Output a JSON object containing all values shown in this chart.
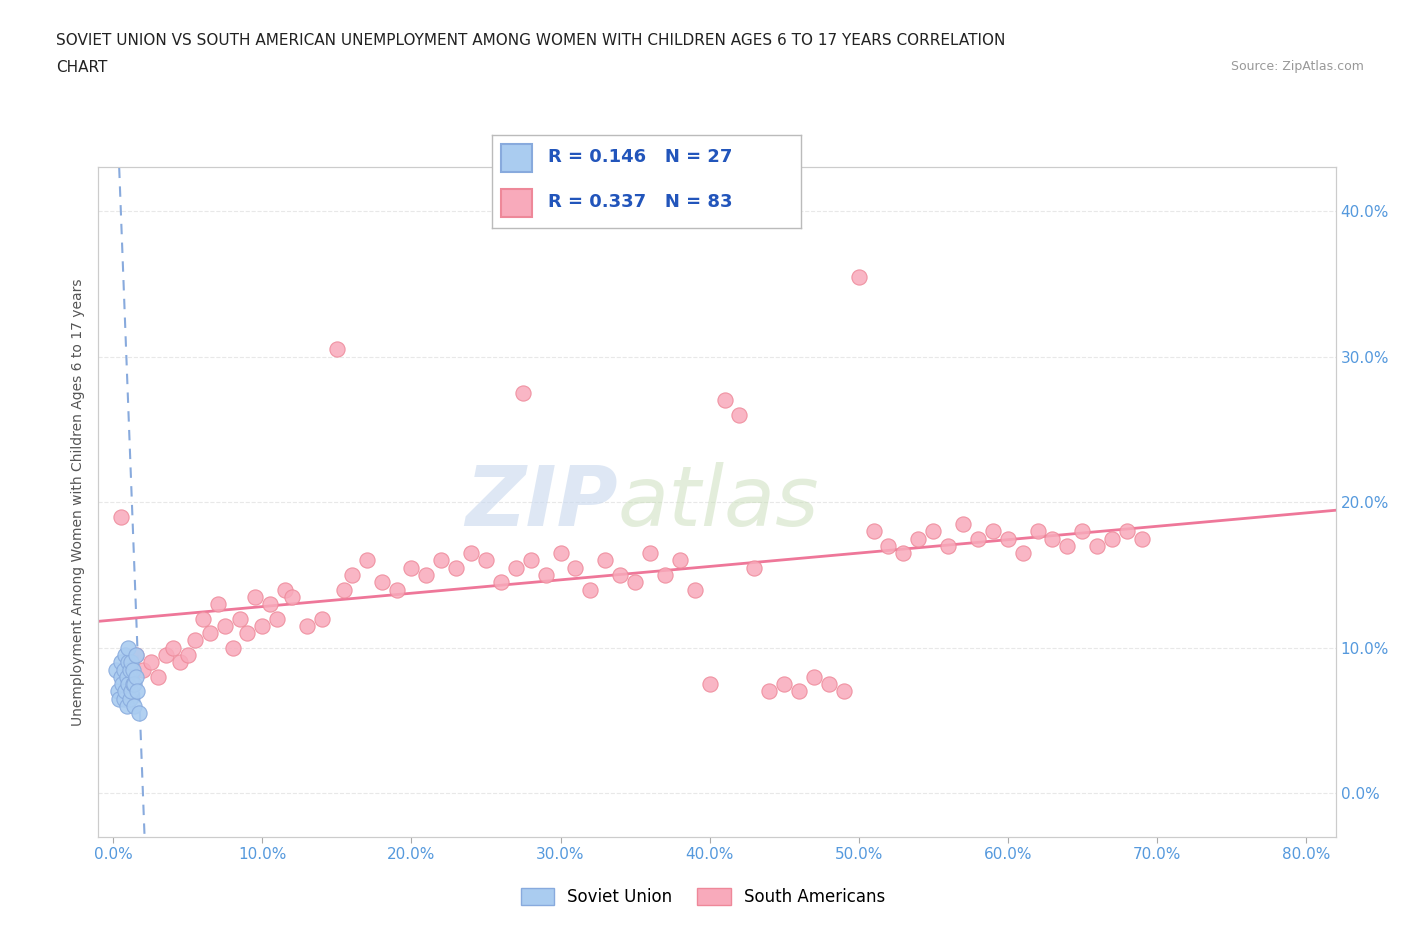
{
  "title_line1": "SOVIET UNION VS SOUTH AMERICAN UNEMPLOYMENT AMONG WOMEN WITH CHILDREN AGES 6 TO 17 YEARS CORRELATION",
  "title_line2": "CHART",
  "source_text": "Source: ZipAtlas.com",
  "watermark_zip": "ZIP",
  "watermark_atlas": "atlas",
  "xlabel_ticks": [
    0.0,
    10.0,
    20.0,
    30.0,
    40.0,
    50.0,
    60.0,
    70.0,
    80.0
  ],
  "ylabel_ticks": [
    0.0,
    10.0,
    20.0,
    30.0,
    40.0
  ],
  "xlim": [
    -1.0,
    82.0
  ],
  "ylim": [
    -3.0,
    43.0
  ],
  "ylabel": "Unemployment Among Women with Children Ages 6 to 17 years",
  "soviet_R": 0.146,
  "soviet_N": 27,
  "south_R": 0.337,
  "south_N": 83,
  "soviet_color": "#aaccf0",
  "south_color": "#f8aabb",
  "soviet_edge_color": "#88aadd",
  "south_edge_color": "#ee8899",
  "soviet_line_color": "#88aadd",
  "south_line_color": "#ee7799",
  "legend_label_soviet": "Soviet Union",
  "legend_label_south": "South Americans",
  "soviet_scatter_x": [
    0.2,
    0.3,
    0.4,
    0.5,
    0.5,
    0.6,
    0.7,
    0.7,
    0.8,
    0.8,
    0.9,
    0.9,
    1.0,
    1.0,
    1.0,
    1.1,
    1.1,
    1.2,
    1.2,
    1.3,
    1.3,
    1.4,
    1.4,
    1.5,
    1.5,
    1.6,
    1.7
  ],
  "soviet_scatter_y": [
    8.5,
    7.0,
    6.5,
    8.0,
    9.0,
    7.5,
    6.5,
    8.5,
    7.0,
    9.5,
    6.0,
    8.0,
    7.5,
    9.0,
    10.0,
    6.5,
    8.5,
    7.0,
    9.0,
    7.5,
    8.5,
    6.0,
    7.5,
    8.0,
    9.5,
    7.0,
    5.5
  ],
  "south_scatter_x": [
    0.5,
    1.0,
    1.5,
    2.0,
    2.5,
    3.0,
    3.5,
    4.0,
    4.5,
    5.0,
    5.5,
    6.0,
    6.5,
    7.0,
    7.5,
    8.0,
    8.5,
    9.0,
    9.5,
    10.0,
    10.5,
    11.0,
    11.5,
    12.0,
    13.0,
    14.0,
    15.0,
    15.5,
    16.0,
    17.0,
    18.0,
    19.0,
    20.0,
    21.0,
    22.0,
    23.0,
    24.0,
    25.0,
    26.0,
    27.0,
    27.5,
    28.0,
    29.0,
    30.0,
    31.0,
    32.0,
    33.0,
    34.0,
    35.0,
    36.0,
    37.0,
    38.0,
    39.0,
    40.0,
    41.0,
    42.0,
    43.0,
    44.0,
    45.0,
    46.0,
    47.0,
    48.0,
    49.0,
    50.0,
    51.0,
    52.0,
    53.0,
    54.0,
    55.0,
    56.0,
    57.0,
    58.0,
    59.0,
    60.0,
    61.0,
    62.0,
    63.0,
    64.0,
    65.0,
    66.0,
    67.0,
    68.0,
    69.0
  ],
  "south_scatter_y": [
    19.0,
    9.0,
    9.5,
    8.5,
    9.0,
    8.0,
    9.5,
    10.0,
    9.0,
    9.5,
    10.5,
    12.0,
    11.0,
    13.0,
    11.5,
    10.0,
    12.0,
    11.0,
    13.5,
    11.5,
    13.0,
    12.0,
    14.0,
    13.5,
    11.5,
    12.0,
    30.5,
    14.0,
    15.0,
    16.0,
    14.5,
    14.0,
    15.5,
    15.0,
    16.0,
    15.5,
    16.5,
    16.0,
    14.5,
    15.5,
    27.5,
    16.0,
    15.0,
    16.5,
    15.5,
    14.0,
    16.0,
    15.0,
    14.5,
    16.5,
    15.0,
    16.0,
    14.0,
    7.5,
    27.0,
    26.0,
    15.5,
    7.0,
    7.5,
    7.0,
    8.0,
    7.5,
    7.0,
    35.5,
    18.0,
    17.0,
    16.5,
    17.5,
    18.0,
    17.0,
    18.5,
    17.5,
    18.0,
    17.5,
    16.5,
    18.0,
    17.5,
    17.0,
    18.0,
    17.0,
    17.5,
    18.0,
    17.5
  ],
  "grid_color": "#e8e8e8",
  "spine_color": "#cccccc",
  "tick_color": "#5599dd",
  "title_color": "#222222",
  "ylabel_color": "#555555"
}
